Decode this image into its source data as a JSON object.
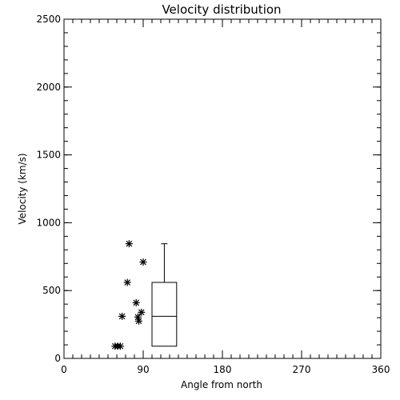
{
  "chart_data": {
    "type": "scatter",
    "title": "Velocity distribution",
    "xlabel": "Angle from north",
    "ylabel": "Velocity (km/s)",
    "xlim": [
      0,
      360
    ],
    "ylim": [
      0,
      2500
    ],
    "xticks": [
      "0",
      "90",
      "180",
      "270",
      "360"
    ],
    "yticks": [
      "0",
      "500",
      "1000",
      "1500",
      "2000",
      "2500"
    ],
    "grid": false,
    "points": [
      {
        "x": 58,
        "y": 90
      },
      {
        "x": 61,
        "y": 90
      },
      {
        "x": 64,
        "y": 90
      },
      {
        "x": 66,
        "y": 310
      },
      {
        "x": 72,
        "y": 560
      },
      {
        "x": 74,
        "y": 845
      },
      {
        "x": 82,
        "y": 410
      },
      {
        "x": 84,
        "y": 305
      },
      {
        "x": 85,
        "y": 275
      },
      {
        "x": 88,
        "y": 340
      },
      {
        "x": 90,
        "y": 710
      }
    ],
    "boxplot": {
      "x_range": [
        100,
        128
      ],
      "min": 90,
      "q1": 90,
      "median": 310,
      "q3": 560,
      "max": 845
    }
  }
}
